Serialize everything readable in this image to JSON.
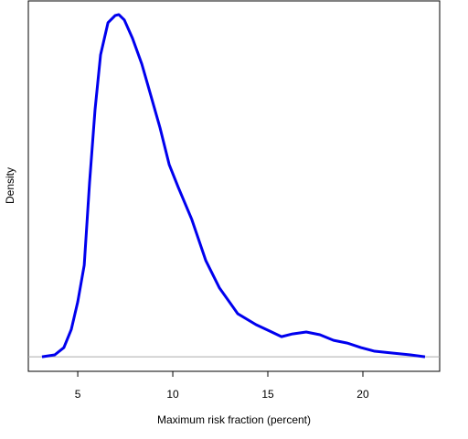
{
  "chart_data": {
    "type": "line",
    "x_label": "Maximum risk fraction (percent)",
    "y_label": "Density",
    "xlim": [
      2.4,
      24.04
    ],
    "ylim": [
      -0.0068,
      0.1664
    ],
    "xticks": [
      5,
      10,
      15,
      20
    ],
    "hline": 0,
    "hline_color": "#aaaaaa",
    "series": [
      {
        "color": "#0000ee",
        "x": [
          3.12,
          3.79,
          4.27,
          4.66,
          5.0,
          5.34,
          5.62,
          5.91,
          6.2,
          6.59,
          6.97,
          7.16,
          7.45,
          7.88,
          8.37,
          8.85,
          9.33,
          9.81,
          10.29,
          11.0,
          11.74,
          12.46,
          13.42,
          14.38,
          15.1,
          15.72,
          16.3,
          17.02,
          17.74,
          18.46,
          19.18,
          19.9,
          20.62,
          21.6,
          22.5,
          23.27
        ],
        "values": [
          0,
          0.0009,
          0.0043,
          0.0128,
          0.0257,
          0.0428,
          0.0813,
          0.1156,
          0.1412,
          0.1562,
          0.1596,
          0.16,
          0.1575,
          0.1489,
          0.1369,
          0.122,
          0.107,
          0.0899,
          0.0792,
          0.0642,
          0.0449,
          0.0321,
          0.0201,
          0.015,
          0.012,
          0.0094,
          0.0107,
          0.0116,
          0.0103,
          0.0077,
          0.0064,
          0.0043,
          0.0026,
          0.0017,
          0.0009,
          0
        ]
      }
    ]
  }
}
